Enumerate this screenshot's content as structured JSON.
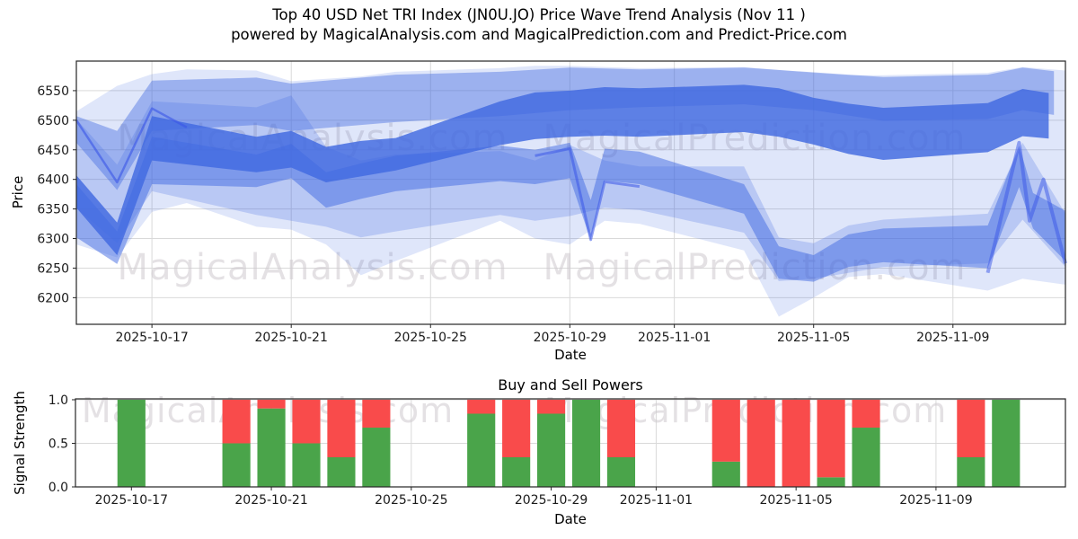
{
  "figure": {
    "title_line1": "Top 40 USD Net TRI Index (JN0U.JO) Price Wave Trend Analysis (Nov 11 )",
    "title_line2": "powered by MagicalAnalysis.com and MagicalPrediction.com and Predict-Price.com"
  },
  "watermarks": {
    "analysis": "MagicalAnalysis.com",
    "prediction": "MagicalPrediction.com"
  },
  "colors": {
    "wave": "#4169e1",
    "wave_accent": "#3a55e8",
    "buy_green": "#4aa44a",
    "sell_red": "#f94b4b",
    "grid": "#d9d9d9",
    "spine": "#262626",
    "tick_text": "#1a1a1a",
    "watermark": "#cfc9cf"
  },
  "chart_data": [
    {
      "type": "area",
      "name": "price-wave-trend",
      "xlabel": "Date",
      "ylabel": "Price",
      "x_unit": "days since 2025-10-15",
      "xlim": [
        -0.17,
        28.23
      ],
      "ylim": [
        6155,
        6600
      ],
      "grid": true,
      "xticks": [
        {
          "day": 2,
          "label": "2025-10-17"
        },
        {
          "day": 6,
          "label": "2025-10-21"
        },
        {
          "day": 10,
          "label": "2025-10-25"
        },
        {
          "day": 14,
          "label": "2025-10-29"
        },
        {
          "day": 17,
          "label": "2025-11-01"
        },
        {
          "day": 21,
          "label": "2025-11-05"
        },
        {
          "day": 25,
          "label": "2025-11-09"
        }
      ],
      "yticks": [
        6200,
        6250,
        6300,
        6350,
        6400,
        6450,
        6500,
        6550
      ],
      "bands": [
        {
          "name": "outer-light-envelope",
          "opacity": 0.17,
          "x": [
            -0.17,
            1,
            2,
            3,
            5,
            6,
            7,
            8,
            9,
            12,
            13,
            14,
            15,
            16,
            19,
            20,
            21,
            22,
            23,
            26,
            27,
            28.3
          ],
          "upper": [
            6515,
            6558,
            6578,
            6586,
            6584,
            6566,
            6570,
            6574,
            6582,
            6588,
            6592,
            6592,
            6590,
            6588,
            6590,
            6585,
            6580,
            6576,
            6576,
            6580,
            6590,
            6584
          ],
          "lower": [
            6290,
            6268,
            6345,
            6360,
            6320,
            6315,
            6290,
            6238,
            6262,
            6330,
            6300,
            6290,
            6330,
            6325,
            6280,
            6168,
            6200,
            6235,
            6240,
            6212,
            6232,
            6222
          ]
        },
        {
          "name": "inner-light-fan",
          "opacity": 0.24,
          "x": [
            -0.17,
            1,
            2,
            5,
            6,
            7,
            8,
            9,
            12,
            13,
            14,
            15,
            16,
            19,
            20,
            21,
            22,
            23,
            26,
            27,
            28.3
          ],
          "upper": [
            6502,
            6425,
            6532,
            6522,
            6542,
            6455,
            6432,
            6442,
            6448,
            6432,
            6458,
            6432,
            6422,
            6422,
            6302,
            6292,
            6322,
            6332,
            6342,
            6462,
            6342
          ],
          "lower": [
            6352,
            6292,
            6380,
            6340,
            6330,
            6320,
            6302,
            6312,
            6340,
            6330,
            6338,
            6352,
            6348,
            6310,
            6228,
            6232,
            6242,
            6252,
            6258,
            6332,
            6252
          ]
        },
        {
          "name": "upper-medium-band",
          "opacity": 0.42,
          "x": [
            -0.17,
            1,
            2,
            5,
            6,
            9,
            12,
            14,
            16,
            19,
            21,
            23,
            26,
            27,
            27.9
          ],
          "upper": [
            6507,
            6482,
            6567,
            6572,
            6562,
            6577,
            6582,
            6589,
            6586,
            6589,
            6581,
            6573,
            6577,
            6589,
            6583
          ],
          "lower": [
            6462,
            6382,
            6482,
            6492,
            6482,
            6497,
            6507,
            6517,
            6522,
            6527,
            6517,
            6499,
            6502,
            6517,
            6509
          ]
        },
        {
          "name": "middle-meander-band",
          "opacity": 0.5,
          "x": [
            -0.17,
            1,
            2,
            5,
            6,
            7,
            8,
            9,
            12,
            13,
            14,
            14.6,
            15,
            16,
            19,
            20,
            21,
            22,
            23,
            26,
            26.9,
            27.3,
            28.3
          ],
          "upper": [
            6392,
            6312,
            6472,
            6442,
            6460,
            6412,
            6427,
            6440,
            6457,
            6450,
            6462,
            6365,
            6452,
            6447,
            6392,
            6287,
            6272,
            6307,
            6317,
            6322,
            6457,
            6377,
            6347
          ],
          "lower": [
            6302,
            6257,
            6392,
            6387,
            6402,
            6352,
            6367,
            6380,
            6397,
            6392,
            6402,
            6297,
            6398,
            6392,
            6342,
            6232,
            6227,
            6252,
            6260,
            6250,
            6387,
            6317,
            6262
          ]
        },
        {
          "name": "dark-core-band",
          "opacity": 0.82,
          "x": [
            -0.17,
            1,
            2,
            5,
            6,
            7,
            8,
            9,
            12,
            13,
            14,
            15,
            16,
            19,
            20,
            21,
            22,
            23,
            26,
            27,
            27.75
          ],
          "upper": [
            6407,
            6327,
            6507,
            6472,
            6482,
            6455,
            6465,
            6470,
            6532,
            6547,
            6550,
            6556,
            6554,
            6560,
            6554,
            6538,
            6528,
            6521,
            6529,
            6553,
            6546
          ],
          "lower": [
            6352,
            6272,
            6432,
            6412,
            6420,
            6395,
            6405,
            6415,
            6458,
            6468,
            6472,
            6474,
            6472,
            6480,
            6472,
            6459,
            6443,
            6433,
            6446,
            6473,
            6469
          ]
        }
      ],
      "lines": [
        {
          "name": "left-dip-accent",
          "opacity": 0.6,
          "width": 2.5,
          "x": [
            -0.17,
            1,
            2,
            3
          ],
          "y": [
            6500,
            6395,
            6520,
            6488
          ]
        },
        {
          "name": "oct29-v-accent",
          "opacity": 0.55,
          "width": 3,
          "x": [
            13,
            14,
            14.6,
            15,
            16
          ],
          "y": [
            6440,
            6452,
            6298,
            6396,
            6388
          ]
        },
        {
          "name": "right-zigzag-accent",
          "opacity": 0.5,
          "width": 4,
          "x": [
            26,
            26.9,
            27.2,
            27.6,
            28.3
          ],
          "y": [
            6242,
            6462,
            6330,
            6400,
            6258
          ]
        }
      ]
    },
    {
      "type": "bar",
      "name": "buy-sell-powers",
      "title": "Buy and Sell Powers",
      "xlabel": "Date",
      "ylabel": "Signal Strength",
      "x_unit": "days since 2025-10-15",
      "xlim": [
        0.4,
        28.7
      ],
      "ylim": [
        0,
        1.01
      ],
      "grid": true,
      "bar_width_days": 0.8,
      "xticks": [
        {
          "day": 2,
          "label": "2025-10-17"
        },
        {
          "day": 6,
          "label": "2025-10-21"
        },
        {
          "day": 10,
          "label": "2025-10-25"
        },
        {
          "day": 14,
          "label": "2025-10-29"
        },
        {
          "day": 17,
          "label": "2025-11-01"
        },
        {
          "day": 21,
          "label": "2025-11-05"
        },
        {
          "day": 25,
          "label": "2025-11-09"
        }
      ],
      "yticks": [
        {
          "v": 0.0,
          "label": "0.0"
        },
        {
          "v": 0.5,
          "label": "0.5"
        },
        {
          "v": 1.0,
          "label": "1.0"
        }
      ],
      "bars": [
        {
          "date": "2025-10-17",
          "day": 2,
          "buy": 1.0,
          "sell": 0.0
        },
        {
          "date": "2025-10-20",
          "day": 5,
          "buy": 0.5,
          "sell": 0.5
        },
        {
          "date": "2025-10-21",
          "day": 6,
          "buy": 0.9,
          "sell": 0.1
        },
        {
          "date": "2025-10-22",
          "day": 7,
          "buy": 0.5,
          "sell": 0.5
        },
        {
          "date": "2025-10-23",
          "day": 8,
          "buy": 0.34,
          "sell": 0.66
        },
        {
          "date": "2025-10-24",
          "day": 9,
          "buy": 0.68,
          "sell": 0.32
        },
        {
          "date": "2025-10-27",
          "day": 12,
          "buy": 0.84,
          "sell": 0.16
        },
        {
          "date": "2025-10-28",
          "day": 13,
          "buy": 0.34,
          "sell": 0.66
        },
        {
          "date": "2025-10-29",
          "day": 14,
          "buy": 0.84,
          "sell": 0.16
        },
        {
          "date": "2025-10-30",
          "day": 15,
          "buy": 1.0,
          "sell": 0.0
        },
        {
          "date": "2025-10-31",
          "day": 16,
          "buy": 0.34,
          "sell": 0.66
        },
        {
          "date": "2025-11-03",
          "day": 19,
          "buy": 0.29,
          "sell": 0.71
        },
        {
          "date": "2025-11-04",
          "day": 20,
          "buy": 0.0,
          "sell": 1.0
        },
        {
          "date": "2025-11-05",
          "day": 21,
          "buy": 0.0,
          "sell": 1.0
        },
        {
          "date": "2025-11-06",
          "day": 22,
          "buy": 0.11,
          "sell": 0.89
        },
        {
          "date": "2025-11-07",
          "day": 23,
          "buy": 0.68,
          "sell": 0.32
        },
        {
          "date": "2025-11-10",
          "day": 26,
          "buy": 0.34,
          "sell": 0.66
        },
        {
          "date": "2025-11-11",
          "day": 27,
          "buy": 1.0,
          "sell": 0.0
        }
      ]
    }
  ]
}
